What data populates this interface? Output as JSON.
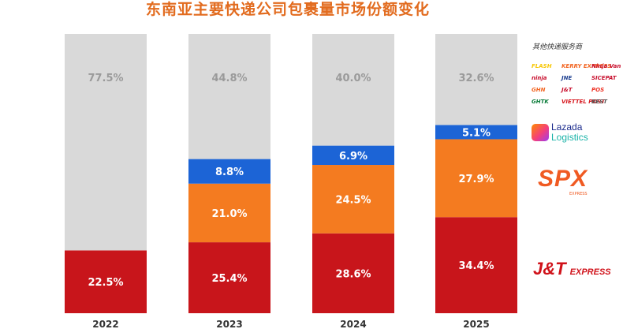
{
  "chart_data": {
    "type": "bar",
    "stacked": true,
    "title": "东南亚主要快递公司包裹量市场份额变化",
    "categories": [
      "2022",
      "2023",
      "2024",
      "2025"
    ],
    "series": [
      {
        "key": "jnt",
        "values": [
          22.5,
          25.4,
          28.6,
          34.4
        ],
        "labels": [
          "22.5%",
          "25.4%",
          "28.6%",
          "34.4%"
        ],
        "color": "#c8151b"
      },
      {
        "key": "spx",
        "values": [
          0,
          21.0,
          24.5,
          27.9
        ],
        "labels": [
          "",
          "21.0%",
          "24.5%",
          "27.9%"
        ],
        "color": "#f47b20"
      },
      {
        "key": "lazada",
        "values": [
          0,
          8.8,
          6.9,
          5.1
        ],
        "labels": [
          "",
          "8.8%",
          "6.9%",
          "5.1%"
        ],
        "color": "#1c64d6"
      },
      {
        "key": "others",
        "values": [
          77.5,
          44.8,
          40.0,
          32.6
        ],
        "labels": [
          "77.5%",
          "44.8%",
          "40.0%",
          "32.6%"
        ],
        "color": "#d9d9d9"
      }
    ],
    "ylim": [
      0,
      100
    ],
    "grid": false,
    "legend_position": "right"
  },
  "legend": {
    "others_heading": "其他快递服务商",
    "others_logos": [
      {
        "text": "FLASH",
        "color": "#f7c600"
      },
      {
        "text": "KERRY EXPRESS",
        "color": "#f26522"
      },
      {
        "text": "Ninja Van",
        "color": "#c8102e"
      },
      {
        "text": "ninja",
        "color": "#c8102e"
      },
      {
        "text": "JNE",
        "color": "#1b3d8f"
      },
      {
        "text": "SICEPAT",
        "color": "#c8102e"
      },
      {
        "text": "GHN",
        "color": "#f26522"
      },
      {
        "text": "J&T",
        "color": "#c8102e"
      },
      {
        "text": "POS",
        "color": "#ee3124"
      },
      {
        "text": "GHTK",
        "color": "#0a7c3a"
      },
      {
        "text": "VIETTEL POST",
        "color": "#d71920"
      },
      {
        "text": "BEST",
        "color": "#555555"
      }
    ],
    "lazada_brand": "Lazada",
    "lazada_sub": "Logistics",
    "spx_brand": "SPX",
    "spx_sub": "EXPRESS",
    "jnt_brand": "J&T",
    "jnt_sub": "EXPRESS"
  },
  "colors": {
    "title": "#e26b1e",
    "label_light": "#ffffff",
    "label_grey": "#9a9a9a"
  }
}
